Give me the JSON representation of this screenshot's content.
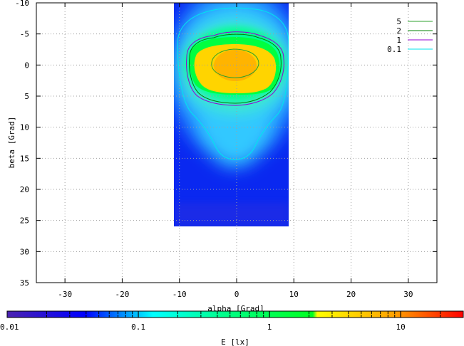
{
  "chart_data": {
    "type": "heatmap",
    "title": "",
    "xlabel": "alpha [Grad]",
    "ylabel": "beta [Grad]",
    "xlim": [
      -35,
      35
    ],
    "ylim": [
      35,
      -10
    ],
    "y_axis_inverted": true,
    "x_ticks": [
      -30,
      -20,
      -10,
      0,
      10,
      20,
      30
    ],
    "y_ticks": [
      -10,
      -5,
      0,
      5,
      10,
      15,
      20,
      25,
      30,
      35
    ],
    "grid": true,
    "data_extent": {
      "alpha": [
        -10.5,
        9
      ],
      "beta": [
        -10,
        26
      ]
    },
    "peak": {
      "alpha": 0,
      "beta": 0
    },
    "colorbar": {
      "label": "E [lx]",
      "scale": "log",
      "range": [
        0.01,
        30
      ],
      "tick_labels": [
        "0.01",
        "0.1",
        "1",
        "10"
      ],
      "tick_values": [
        0.01,
        0.1,
        1,
        10
      ],
      "colors": [
        "#4b22b0",
        "#0000ff",
        "#00ffff",
        "#00ff40",
        "#ffff00",
        "#ff8000",
        "#ff0000"
      ]
    },
    "contours": [
      {
        "name": "5",
        "level": 5,
        "color": "#2ca02c",
        "alpha_extent": [
          -4,
          3.5
        ],
        "beta_extent": [
          -2.5,
          2
        ]
      },
      {
        "name": "2",
        "level": 2,
        "color": "#008000",
        "alpha_extent": [
          -8.5,
          8
        ],
        "beta_extent": [
          -5,
          6.5
        ]
      },
      {
        "name": "1",
        "level": 1,
        "color": "#9400d3",
        "alpha_extent": [
          -9,
          8.5
        ],
        "beta_extent": [
          -5.5,
          7
        ]
      },
      {
        "name": "0.1",
        "level": 0.1,
        "color": "#00e5ee",
        "alpha_extent": [
          -10,
          9
        ],
        "beta_extent": [
          -9,
          15.5
        ]
      }
    ],
    "legend_position": "top-right"
  }
}
